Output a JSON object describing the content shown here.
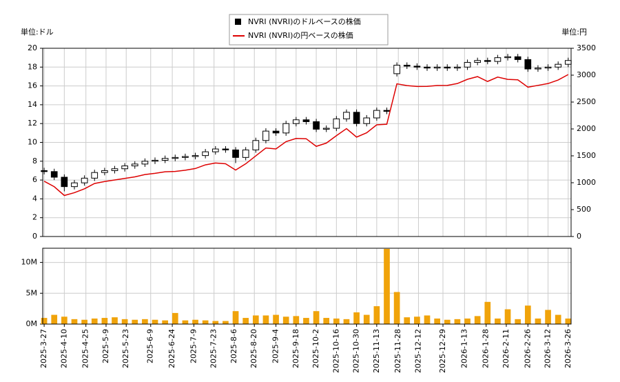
{
  "chart_data": {
    "type": "candlestick",
    "y_unit": "単位:ドル",
    "y2_unit": "単位:円",
    "x": [
      "2025-3-27",
      "2025-4-3",
      "2025-4-10",
      "2025-4-17",
      "2025-4-24",
      "2025-5-1",
      "2025-5-8",
      "2025-5-15",
      "2025-5-22",
      "2025-5-29",
      "2025-6-5",
      "2025-6-12",
      "2025-6-19",
      "2025-6-26",
      "2025-7-3",
      "2025-7-10",
      "2025-7-17",
      "2025-7-24",
      "2025-7-31",
      "2025-8-7",
      "2025-8-14",
      "2025-8-21",
      "2025-8-28",
      "2025-9-4",
      "2025-9-11",
      "2025-9-18",
      "2025-9-25",
      "2025-10-2",
      "2025-10-9",
      "2025-10-16",
      "2025-10-23",
      "2025-10-30",
      "2025-11-6",
      "2025-11-13",
      "2025-11-20",
      "2025-11-27",
      "2025-12-4",
      "2025-12-11",
      "2025-12-18",
      "2025-12-25",
      "2026-1-1",
      "2026-1-8",
      "2026-1-15",
      "2026-1-22",
      "2026-1-29",
      "2026-2-5",
      "2026-2-12",
      "2026-2-19",
      "2026-2-26",
      "2026-3-5",
      "2026-3-12",
      "2026-3-19",
      "2026-3-26"
    ],
    "series": [
      {
        "name": "NVRI (NVRI)のドルベースの株価",
        "color": "#000000",
        "open": [
          7.0,
          6.9,
          6.3,
          5.3,
          5.7,
          6.2,
          6.8,
          7.0,
          7.2,
          7.5,
          7.7,
          8.0,
          8.1,
          8.3,
          8.4,
          8.5,
          8.6,
          9.0,
          9.3,
          9.2,
          8.4,
          9.2,
          10.2,
          11.2,
          11.0,
          12.0,
          12.4,
          12.2,
          11.4,
          11.5,
          12.5,
          13.2,
          12.0,
          12.6,
          13.4,
          17.3,
          18.2,
          18.1,
          18.0,
          17.9,
          18.0,
          17.9,
          18.0,
          18.5,
          18.7,
          18.6,
          19.0,
          19.1,
          18.8,
          17.8,
          17.9,
          18.0,
          18.3
        ],
        "high": [
          7.3,
          7.2,
          6.6,
          6.0,
          6.5,
          7.1,
          7.3,
          7.5,
          7.8,
          8.0,
          8.3,
          8.4,
          8.6,
          8.7,
          8.8,
          8.9,
          9.3,
          9.6,
          9.6,
          9.5,
          9.5,
          10.5,
          11.5,
          11.5,
          12.3,
          12.7,
          12.7,
          12.5,
          11.8,
          12.8,
          13.5,
          13.5,
          12.9,
          13.7,
          13.7,
          18.5,
          18.5,
          18.4,
          18.3,
          18.3,
          18.3,
          18.3,
          18.8,
          19.0,
          19.0,
          19.3,
          19.4,
          19.4,
          19.1,
          18.2,
          18.3,
          18.6,
          19.0
        ],
        "low": [
          6.6,
          6.0,
          4.8,
          5.0,
          5.4,
          5.9,
          6.5,
          6.7,
          6.9,
          7.2,
          7.4,
          7.7,
          7.8,
          8.0,
          8.1,
          8.2,
          8.3,
          8.7,
          8.9,
          7.8,
          8.1,
          8.9,
          9.9,
          10.7,
          10.7,
          11.7,
          11.9,
          11.1,
          11.1,
          11.2,
          12.2,
          11.7,
          11.7,
          12.3,
          13.0,
          17.0,
          17.8,
          17.7,
          17.6,
          17.6,
          17.6,
          17.6,
          17.7,
          18.2,
          18.3,
          18.3,
          18.7,
          18.5,
          17.5,
          17.5,
          17.6,
          17.7,
          18.0
        ],
        "close": [
          6.9,
          6.3,
          5.3,
          5.7,
          6.2,
          6.8,
          7.0,
          7.2,
          7.5,
          7.7,
          8.0,
          8.1,
          8.3,
          8.4,
          8.5,
          8.6,
          9.0,
          9.3,
          9.2,
          8.4,
          9.2,
          10.2,
          11.2,
          11.0,
          12.0,
          12.4,
          12.2,
          11.4,
          11.5,
          12.5,
          13.2,
          12.0,
          12.6,
          13.4,
          13.3,
          18.2,
          18.1,
          18.0,
          17.9,
          18.0,
          17.9,
          18.0,
          18.5,
          18.7,
          18.6,
          19.0,
          19.1,
          18.8,
          17.8,
          17.9,
          18.0,
          18.3,
          18.7
        ]
      },
      {
        "name": "NVRI (NVRI)の円ベースの株価",
        "color": "#dd0000",
        "axis": "y2",
        "values": [
          1028,
          926,
          763,
          815,
          887,
          986,
          1022,
          1051,
          1080,
          1109,
          1152,
          1175,
          1204,
          1210,
          1233,
          1264,
          1332,
          1367,
          1352,
          1235,
          1352,
          1499,
          1646,
          1628,
          1764,
          1823,
          1818,
          1676,
          1737,
          1875,
          2006,
          1848,
          1928,
          2077,
          2088,
          2839,
          2806,
          2790,
          2792,
          2808,
          2810,
          2844,
          2923,
          2973,
          2883,
          2964,
          2922,
          2914,
          2777,
          2810,
          2844,
          2910,
          3011
        ]
      }
    ],
    "xlim": [
      "2025-3-26",
      "2026-3-28"
    ],
    "xticks": [
      "2025-3-27",
      "2025-4-10",
      "2025-4-25",
      "2025-5-9",
      "2025-5-23",
      "2025-6-9",
      "2025-6-24",
      "2025-7-9",
      "2025-7-23",
      "2025-8-6",
      "2025-8-20",
      "2025-9-4",
      "2025-9-18",
      "2025-10-2",
      "2025-10-16",
      "2025-10-30",
      "2025-11-13",
      "2025-11-28",
      "2025-12-12",
      "2025-12-29",
      "2026-1-13",
      "2026-1-28",
      "2026-2-11",
      "2026-2-26",
      "2026-3-12",
      "2026-3-26"
    ],
    "ylim": [
      0,
      20
    ],
    "yticks": [
      0,
      2,
      4,
      6,
      8,
      10,
      12,
      14,
      16,
      18,
      20
    ],
    "y2lim": [
      0,
      3500
    ],
    "y2ticks": [
      0,
      500,
      1000,
      1500,
      2000,
      2500,
      3000,
      3500
    ],
    "grid": true,
    "volume": {
      "color": "#f0a30a",
      "values": [
        1000000,
        1500000,
        1200000,
        800000,
        700000,
        900000,
        1000000,
        1100000,
        800000,
        700000,
        800000,
        700000,
        600000,
        1800000,
        600000,
        700000,
        600000,
        500000,
        500000,
        2100000,
        1000000,
        1400000,
        1400000,
        1500000,
        1200000,
        1300000,
        1000000,
        2100000,
        1000000,
        900000,
        800000,
        1900000,
        1500000,
        2900000,
        12200000,
        5200000,
        1100000,
        1200000,
        1400000,
        900000,
        700000,
        800000,
        900000,
        1300000,
        3600000,
        900000,
        2400000,
        800000,
        3000000,
        900000,
        2300000,
        1500000,
        900000
      ],
      "ylim": [
        0,
        12300000
      ],
      "yticks": [
        {
          "value": 0,
          "label": "0M"
        },
        {
          "value": 5000000,
          "label": "5M"
        },
        {
          "value": 10000000,
          "label": "10M"
        }
      ]
    }
  }
}
